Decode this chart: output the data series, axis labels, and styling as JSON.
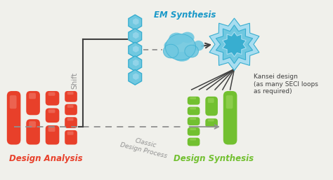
{
  "bg_color": "#f0f0eb",
  "red_color": "#e8402a",
  "red_light": "#f08070",
  "green_color": "#72c030",
  "green_light": "#a0d860",
  "blue_color": "#38aed0",
  "blue_mid": "#70c8e0",
  "blue_light": "#a8ddf0",
  "cyan_text": "#1898c8",
  "gray_line": "#909090",
  "dark_line": "#404040",
  "label_design_analysis": "Design Analysis",
  "label_design_synthesis": "Design Synthesis",
  "label_em_synthesis": "EM Synthesis",
  "label_shift": "Shift",
  "label_classic": "Classic\nDesign Process",
  "label_kansei": "Kansei design\n(as many SECI loops\nas required)"
}
